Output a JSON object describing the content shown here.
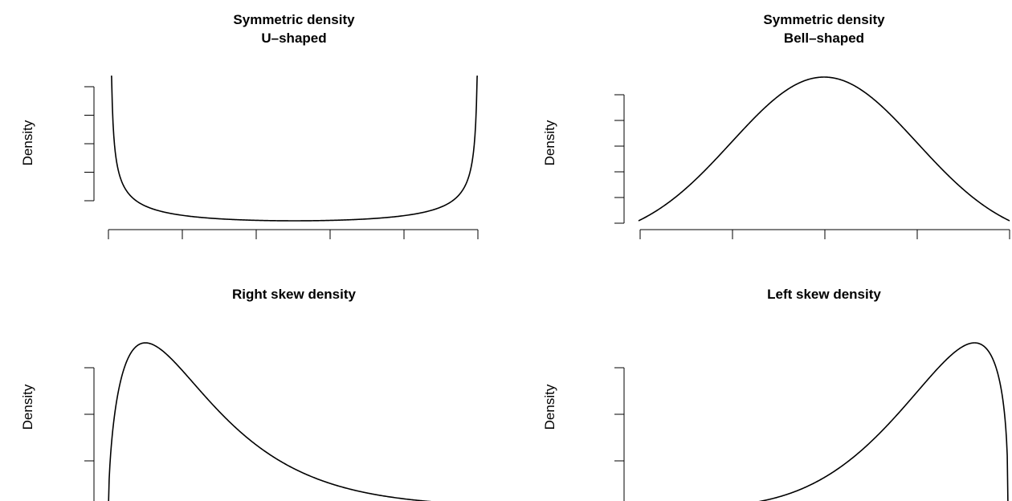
{
  "chart_data": [
    {
      "type": "line",
      "title": "Symmetric density",
      "subtitle": "U–shaped",
      "ylabel": "Density",
      "xlabel": "",
      "x_ticks": 6,
      "y_ticks": 5,
      "curve": {
        "family": "beta",
        "a": 0.5,
        "b": 0.5,
        "x_range": [
          0.002,
          0.998
        ],
        "clip_y": 5.0
      }
    },
    {
      "type": "line",
      "title": "Symmetric density",
      "subtitle": "Bell–shaped",
      "ylabel": "Density",
      "xlabel": "",
      "x_ticks": 5,
      "y_ticks": 6,
      "curve": {
        "family": "normal",
        "mean": 0,
        "sd": 1,
        "x_range": [
          -2,
          2
        ]
      }
    },
    {
      "type": "line",
      "title": "Right skew density",
      "subtitle": "",
      "ylabel": "Density",
      "xlabel": "",
      "x_ticks": 5,
      "y_ticks": 4,
      "curve": {
        "family": "gamma",
        "shape": 1.6,
        "scale": 1,
        "x_range": [
          0,
          6
        ]
      }
    },
    {
      "type": "line",
      "title": "Left skew density",
      "subtitle": "",
      "ylabel": "Density",
      "xlabel": "",
      "x_ticks": 5,
      "y_ticks": 4,
      "curve": {
        "family": "beta",
        "a": 5,
        "b": 1.4,
        "x_range": [
          0,
          1
        ]
      }
    }
  ]
}
